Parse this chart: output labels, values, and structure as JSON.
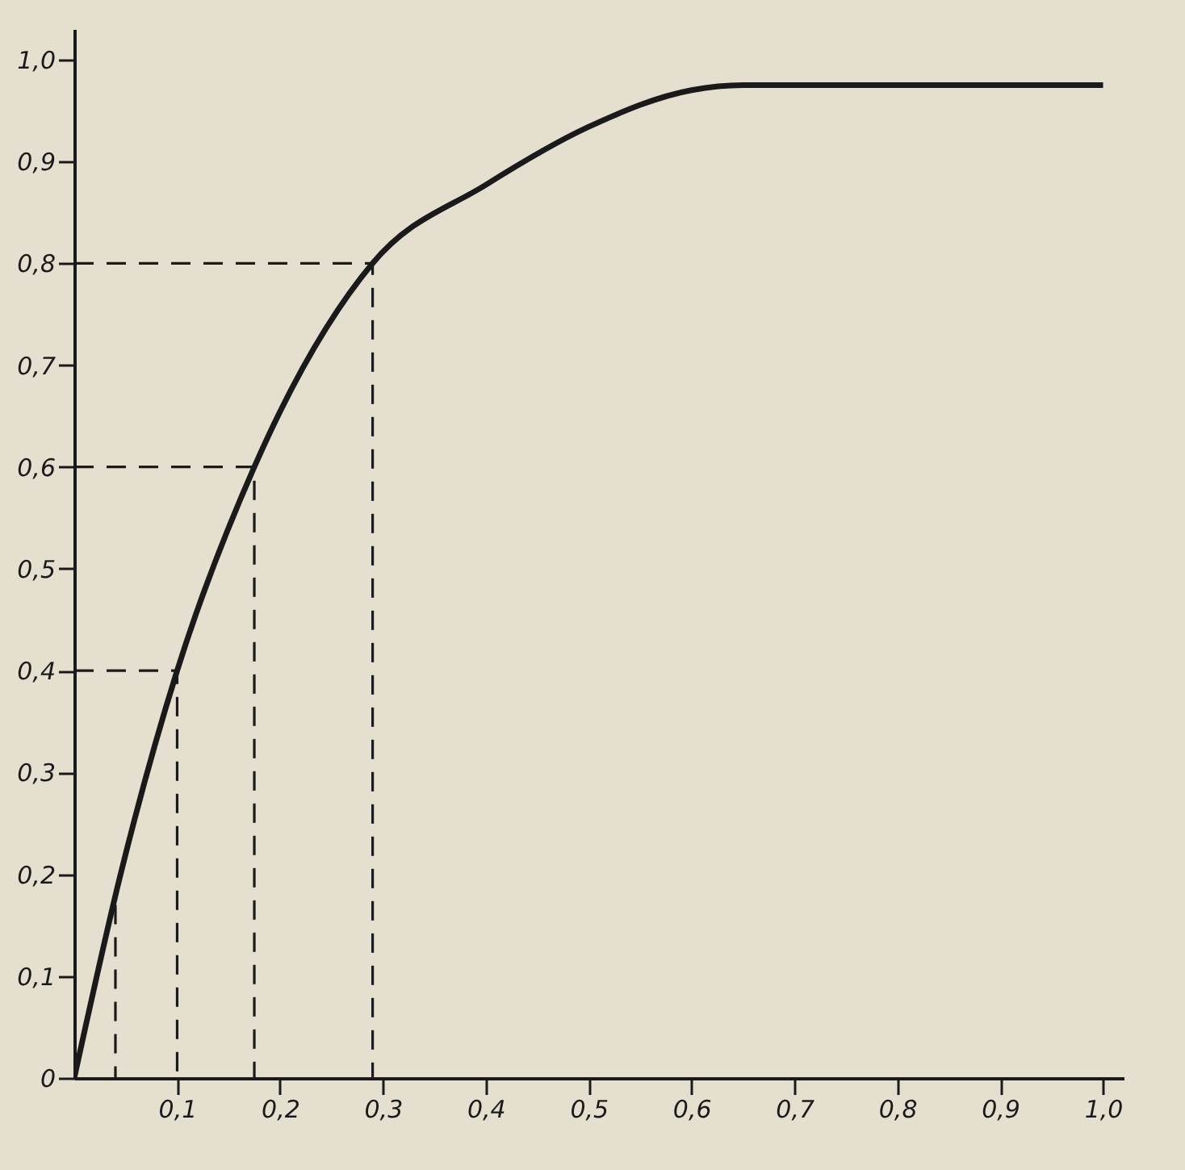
{
  "chart_data": {
    "type": "line",
    "xlim": [
      0,
      1.02
    ],
    "ylim": [
      0,
      1.03
    ],
    "xticks": [
      {
        "value": 0.1,
        "label": "0,1"
      },
      {
        "value": 0.2,
        "label": "0,2"
      },
      {
        "value": 0.3,
        "label": "0,3"
      },
      {
        "value": 0.4,
        "label": "0,4"
      },
      {
        "value": 0.5,
        "label": "0,5"
      },
      {
        "value": 0.6,
        "label": "0,6"
      },
      {
        "value": 0.7,
        "label": "0,7"
      },
      {
        "value": 0.8,
        "label": "0,8"
      },
      {
        "value": 0.9,
        "label": "0,9"
      },
      {
        "value": 1.0,
        "label": "1,0"
      }
    ],
    "yticks": [
      0,
      {
        "value": 0.1,
        "label": "0,1"
      },
      {
        "value": 0.2,
        "label": "0,2"
      },
      {
        "value": 0.3,
        "label": "0,3"
      },
      {
        "value": 0.4,
        "label": "0,4"
      },
      {
        "value": 0.5,
        "label": "0,5"
      },
      {
        "value": 0.6,
        "label": "0,6"
      },
      {
        "value": 0.7,
        "label": "0,7"
      },
      {
        "value": 0.8,
        "label": "0,8"
      },
      {
        "value": 0.9,
        "label": "0,9"
      },
      {
        "value": 1.0,
        "label": "1,0"
      }
    ],
    "grid": false,
    "marker": "none",
    "series": [
      {
        "color": "#1a1a1a",
        "line_style": "solid",
        "x": [
          0,
          0.045,
          0.1,
          0.175,
          0.29,
          0.4,
          0.5,
          0.6,
          0.65,
          0.7,
          0.8,
          0.9,
          1.0
        ],
        "values": [
          0,
          0.2,
          0.4,
          0.6,
          0.8,
          0.877,
          0.934,
          0.97,
          0.975,
          0.975,
          0.975,
          0.975,
          0.975
        ]
      },
      {
        "color": "#1a1a1a",
        "line_style": "dashed",
        "x": [
          0.04,
          0.04
        ],
        "values": [
          0.17,
          0
        ]
      },
      {
        "color": "#1a1a1a",
        "line_style": "dashed",
        "x": [
          0,
          0.1,
          0.1
        ],
        "values": [
          0.4,
          0.4,
          0
        ]
      },
      {
        "color": "#1a1a1a",
        "line_style": "dashed",
        "x": [
          0,
          0.175,
          0.175
        ],
        "values": [
          0.6,
          0.6,
          0
        ]
      },
      {
        "color": "#1a1a1a",
        "line_style": "dashed",
        "x": [
          0,
          0.29,
          0.29
        ],
        "values": [
          0.8,
          0.8,
          0
        ]
      }
    ]
  }
}
